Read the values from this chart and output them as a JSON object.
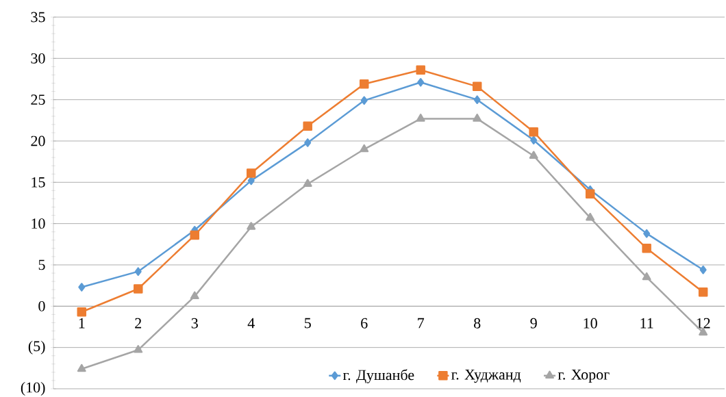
{
  "chart_data": {
    "type": "line",
    "categories": [
      "1",
      "2",
      "3",
      "4",
      "5",
      "6",
      "7",
      "8",
      "9",
      "10",
      "11",
      "12"
    ],
    "series": [
      {
        "name": "г. Душанбе",
        "color": "#5b9bd5",
        "marker": "diamond",
        "values": [
          2.3,
          4.2,
          9.2,
          15.2,
          19.8,
          24.9,
          27.1,
          25.0,
          20.1,
          14.1,
          8.8,
          4.4
        ]
      },
      {
        "name": "г. Худжанд",
        "color": "#ed7d31",
        "marker": "square",
        "values": [
          -0.7,
          2.1,
          8.6,
          16.1,
          21.8,
          26.9,
          28.6,
          26.6,
          21.1,
          13.6,
          7.0,
          1.7
        ]
      },
      {
        "name": "г. Хорог",
        "color": "#a5a5a5",
        "marker": "triangle",
        "values": [
          -7.6,
          -5.3,
          1.2,
          9.6,
          14.8,
          19.0,
          22.7,
          22.7,
          18.2,
          10.7,
          3.5,
          -3.2
        ]
      }
    ],
    "ylim": [
      -10,
      35
    ],
    "yticks": [
      {
        "value": -10,
        "label": "(10)"
      },
      {
        "value": -5,
        "label": "(5)"
      },
      0,
      5,
      10,
      15,
      20,
      25,
      30,
      35
    ],
    "grid": "y",
    "legend": "bottom",
    "line_style": "solid"
  }
}
